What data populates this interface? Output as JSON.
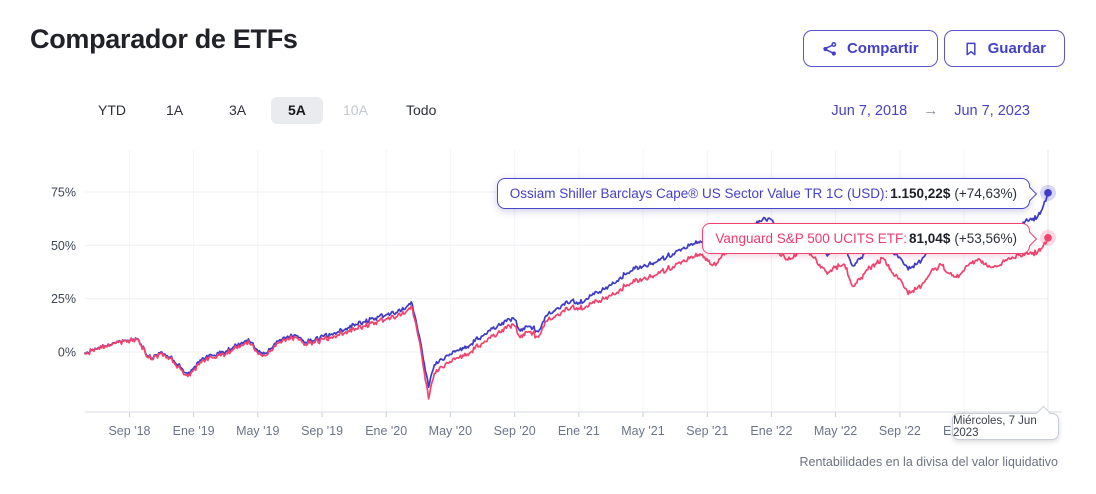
{
  "page": {
    "title": "Comparador de ETFs",
    "footnote": "Rentabilidades en la divisa del valor liquidativo"
  },
  "header_actions": {
    "share_label": "Compartir",
    "save_label": "Guardar"
  },
  "range_tabs": {
    "items": [
      {
        "label": "YTD",
        "state": "normal"
      },
      {
        "label": "1A",
        "state": "normal"
      },
      {
        "label": "3A",
        "state": "normal"
      },
      {
        "label": "5A",
        "state": "selected"
      },
      {
        "label": "10A",
        "state": "disabled"
      },
      {
        "label": "Todo",
        "state": "normal"
      }
    ]
  },
  "date_range": {
    "start": "Jun 7, 2018",
    "arrow": "→",
    "end": "Jun 7, 2023"
  },
  "chart_data": {
    "type": "line",
    "grid": true,
    "x_axis": {
      "unit": "decimal_year",
      "range": [
        2018.436,
        2023.436
      ],
      "ticks": [
        {
          "x": 2018.667,
          "label": "Sep '18"
        },
        {
          "x": 2019.0,
          "label": "Ene '19"
        },
        {
          "x": 2019.333,
          "label": "May '19"
        },
        {
          "x": 2019.667,
          "label": "Sep '19"
        },
        {
          "x": 2020.0,
          "label": "Ene '20"
        },
        {
          "x": 2020.333,
          "label": "May '20"
        },
        {
          "x": 2020.667,
          "label": "Sep '20"
        },
        {
          "x": 2021.0,
          "label": "Ene '21"
        },
        {
          "x": 2021.333,
          "label": "May '21"
        },
        {
          "x": 2021.667,
          "label": "Sep '21"
        },
        {
          "x": 2022.0,
          "label": "Ene '22"
        },
        {
          "x": 2022.333,
          "label": "May '22"
        },
        {
          "x": 2022.667,
          "label": "Sep '22"
        },
        {
          "x": 2023.0,
          "label": "Ene '23"
        }
      ]
    },
    "y_axis": {
      "unit": "percent",
      "ticks": [
        0,
        25,
        50,
        75
      ],
      "tick_labels": [
        "0%",
        "25%",
        "50%",
        "75%"
      ],
      "visible_range": [
        -28,
        95
      ]
    },
    "series": [
      {
        "name": "Ossiam Shiller Barclays Cape® US Sector Value TR 1C (USD)",
        "color": "#3E3BC6",
        "last_value_label": "1.150,22$",
        "change_label": "(+74,63%)",
        "points": [
          [
            2018.436,
            -0.5
          ],
          [
            2018.47,
            0.8
          ],
          [
            2018.5,
            1.5
          ],
          [
            2018.54,
            3.0
          ],
          [
            2018.58,
            4.2
          ],
          [
            2018.62,
            5.0
          ],
          [
            2018.67,
            5.6
          ],
          [
            2018.71,
            6.2
          ],
          [
            2018.75,
            -0.5
          ],
          [
            2018.79,
            -3.0
          ],
          [
            2018.83,
            0.0
          ],
          [
            2018.88,
            -2.5
          ],
          [
            2018.92,
            -6.0
          ],
          [
            2018.97,
            -10.5
          ],
          [
            2019.0,
            -7.5
          ],
          [
            2019.04,
            -4.0
          ],
          [
            2019.08,
            -1.5
          ],
          [
            2019.13,
            -0.5
          ],
          [
            2019.17,
            0.5
          ],
          [
            2019.21,
            2.5
          ],
          [
            2019.25,
            4.5
          ],
          [
            2019.29,
            5.0
          ],
          [
            2019.33,
            1.0
          ],
          [
            2019.38,
            -0.5
          ],
          [
            2019.42,
            4.0
          ],
          [
            2019.46,
            6.0
          ],
          [
            2019.5,
            7.0
          ],
          [
            2019.54,
            7.5
          ],
          [
            2019.58,
            4.5
          ],
          [
            2019.63,
            5.5
          ],
          [
            2019.67,
            7.5
          ],
          [
            2019.71,
            8.0
          ],
          [
            2019.75,
            9.5
          ],
          [
            2019.79,
            11.0
          ],
          [
            2019.83,
            13.0
          ],
          [
            2019.88,
            14.0
          ],
          [
            2019.92,
            15.5
          ],
          [
            2019.96,
            16.5
          ],
          [
            2020.0,
            17.5
          ],
          [
            2020.04,
            18.0
          ],
          [
            2020.08,
            19.5
          ],
          [
            2020.13,
            23.5
          ],
          [
            2020.17,
            8.0
          ],
          [
            2020.22,
            -16.5
          ],
          [
            2020.25,
            -6.0
          ],
          [
            2020.29,
            -3.5
          ],
          [
            2020.33,
            -1.0
          ],
          [
            2020.38,
            1.0
          ],
          [
            2020.42,
            2.5
          ],
          [
            2020.46,
            5.0
          ],
          [
            2020.5,
            7.5
          ],
          [
            2020.54,
            10.0
          ],
          [
            2020.58,
            12.5
          ],
          [
            2020.63,
            15.5
          ],
          [
            2020.67,
            15.0
          ],
          [
            2020.69,
            10.5
          ],
          [
            2020.75,
            12.0
          ],
          [
            2020.79,
            9.5
          ],
          [
            2020.83,
            17.0
          ],
          [
            2020.88,
            20.0
          ],
          [
            2020.92,
            22.5
          ],
          [
            2020.96,
            24.0
          ],
          [
            2021.0,
            23.0
          ],
          [
            2021.04,
            25.0
          ],
          [
            2021.08,
            27.0
          ],
          [
            2021.13,
            29.5
          ],
          [
            2021.17,
            31.5
          ],
          [
            2021.21,
            34.5
          ],
          [
            2021.25,
            37.0
          ],
          [
            2021.29,
            39.0
          ],
          [
            2021.33,
            40.0
          ],
          [
            2021.38,
            41.5
          ],
          [
            2021.42,
            43.0
          ],
          [
            2021.46,
            45.0
          ],
          [
            2021.5,
            46.5
          ],
          [
            2021.54,
            48.5
          ],
          [
            2021.58,
            50.5
          ],
          [
            2021.63,
            52.0
          ],
          [
            2021.67,
            48.5
          ],
          [
            2021.71,
            46.5
          ],
          [
            2021.75,
            52.0
          ],
          [
            2021.79,
            55.0
          ],
          [
            2021.83,
            57.0
          ],
          [
            2021.88,
            54.0
          ],
          [
            2021.92,
            60.0
          ],
          [
            2021.96,
            63.0
          ],
          [
            2022.0,
            62.0
          ],
          [
            2022.04,
            54.0
          ],
          [
            2022.08,
            51.0
          ],
          [
            2022.13,
            53.5
          ],
          [
            2022.17,
            58.5
          ],
          [
            2022.21,
            53.0
          ],
          [
            2022.25,
            49.0
          ],
          [
            2022.29,
            45.0
          ],
          [
            2022.33,
            48.0
          ],
          [
            2022.38,
            50.0
          ],
          [
            2022.42,
            40.5
          ],
          [
            2022.46,
            43.5
          ],
          [
            2022.5,
            48.0
          ],
          [
            2022.54,
            51.0
          ],
          [
            2022.58,
            54.0
          ],
          [
            2022.63,
            47.0
          ],
          [
            2022.67,
            44.0
          ],
          [
            2022.71,
            38.5
          ],
          [
            2022.75,
            41.0
          ],
          [
            2022.79,
            44.5
          ],
          [
            2022.83,
            50.0
          ],
          [
            2022.88,
            53.0
          ],
          [
            2022.92,
            49.0
          ],
          [
            2022.96,
            47.0
          ],
          [
            2023.0,
            50.0
          ],
          [
            2023.04,
            54.0
          ],
          [
            2023.08,
            57.0
          ],
          [
            2023.13,
            53.5
          ],
          [
            2023.17,
            52.0
          ],
          [
            2023.21,
            55.0
          ],
          [
            2023.25,
            58.0
          ],
          [
            2023.29,
            60.0
          ],
          [
            2023.33,
            61.5
          ],
          [
            2023.38,
            63.0
          ],
          [
            2023.4,
            66.0
          ],
          [
            2023.436,
            74.63
          ]
        ]
      },
      {
        "name": "Vanguard S&P 500 UCITS ETF",
        "color": "#F2426E",
        "last_value_label": "81,04$",
        "change_label": "(+53,56%)",
        "points": [
          [
            2018.436,
            -0.8
          ],
          [
            2018.47,
            0.6
          ],
          [
            2018.5,
            1.3
          ],
          [
            2018.54,
            2.8
          ],
          [
            2018.58,
            4.0
          ],
          [
            2018.62,
            4.8
          ],
          [
            2018.67,
            5.4
          ],
          [
            2018.71,
            6.0
          ],
          [
            2018.75,
            -1.0
          ],
          [
            2018.79,
            -3.5
          ],
          [
            2018.83,
            -0.5
          ],
          [
            2018.88,
            -3.0
          ],
          [
            2018.92,
            -7.0
          ],
          [
            2018.97,
            -11.5
          ],
          [
            2019.0,
            -8.5
          ],
          [
            2019.04,
            -5.0
          ],
          [
            2019.08,
            -2.5
          ],
          [
            2019.13,
            -1.5
          ],
          [
            2019.17,
            -0.5
          ],
          [
            2019.21,
            1.5
          ],
          [
            2019.25,
            3.5
          ],
          [
            2019.29,
            4.0
          ],
          [
            2019.33,
            0.0
          ],
          [
            2019.38,
            -1.5
          ],
          [
            2019.42,
            3.0
          ],
          [
            2019.46,
            5.0
          ],
          [
            2019.5,
            6.0
          ],
          [
            2019.54,
            6.5
          ],
          [
            2019.58,
            3.5
          ],
          [
            2019.63,
            4.5
          ],
          [
            2019.67,
            6.0
          ],
          [
            2019.71,
            6.5
          ],
          [
            2019.75,
            8.0
          ],
          [
            2019.79,
            9.5
          ],
          [
            2019.83,
            11.0
          ],
          [
            2019.88,
            12.0
          ],
          [
            2019.92,
            13.5
          ],
          [
            2019.96,
            14.5
          ],
          [
            2020.0,
            15.5
          ],
          [
            2020.04,
            16.0
          ],
          [
            2020.08,
            17.5
          ],
          [
            2020.13,
            21.5
          ],
          [
            2020.17,
            6.0
          ],
          [
            2020.22,
            -22.0
          ],
          [
            2020.25,
            -10.0
          ],
          [
            2020.29,
            -7.0
          ],
          [
            2020.33,
            -4.5
          ],
          [
            2020.38,
            -2.5
          ],
          [
            2020.42,
            -1.0
          ],
          [
            2020.46,
            1.5
          ],
          [
            2020.5,
            4.0
          ],
          [
            2020.54,
            6.5
          ],
          [
            2020.58,
            9.0
          ],
          [
            2020.63,
            12.5
          ],
          [
            2020.67,
            12.0
          ],
          [
            2020.69,
            7.5
          ],
          [
            2020.75,
            9.5
          ],
          [
            2020.79,
            7.0
          ],
          [
            2020.83,
            14.5
          ],
          [
            2020.88,
            17.0
          ],
          [
            2020.92,
            19.5
          ],
          [
            2020.96,
            21.0
          ],
          [
            2021.0,
            20.5
          ],
          [
            2021.04,
            21.5
          ],
          [
            2021.08,
            23.0
          ],
          [
            2021.13,
            25.0
          ],
          [
            2021.17,
            26.5
          ],
          [
            2021.21,
            29.0
          ],
          [
            2021.25,
            31.5
          ],
          [
            2021.29,
            33.0
          ],
          [
            2021.33,
            34.0
          ],
          [
            2021.38,
            35.5
          ],
          [
            2021.42,
            37.0
          ],
          [
            2021.46,
            39.0
          ],
          [
            2021.5,
            40.5
          ],
          [
            2021.54,
            42.5
          ],
          [
            2021.58,
            44.5
          ],
          [
            2021.63,
            46.0
          ],
          [
            2021.67,
            42.5
          ],
          [
            2021.71,
            40.5
          ],
          [
            2021.75,
            46.0
          ],
          [
            2021.79,
            48.5
          ],
          [
            2021.83,
            50.0
          ],
          [
            2021.88,
            46.5
          ],
          [
            2021.92,
            52.5
          ],
          [
            2021.96,
            55.5
          ],
          [
            2022.0,
            54.5
          ],
          [
            2022.04,
            46.5
          ],
          [
            2022.08,
            43.5
          ],
          [
            2022.13,
            45.5
          ],
          [
            2022.17,
            50.5
          ],
          [
            2022.21,
            45.0
          ],
          [
            2022.25,
            41.0
          ],
          [
            2022.29,
            36.5
          ],
          [
            2022.33,
            39.5
          ],
          [
            2022.38,
            41.0
          ],
          [
            2022.42,
            31.0
          ],
          [
            2022.46,
            34.0
          ],
          [
            2022.5,
            38.5
          ],
          [
            2022.54,
            41.5
          ],
          [
            2022.58,
            44.0
          ],
          [
            2022.63,
            37.0
          ],
          [
            2022.67,
            34.0
          ],
          [
            2022.71,
            27.0
          ],
          [
            2022.75,
            29.5
          ],
          [
            2022.79,
            32.5
          ],
          [
            2022.83,
            38.0
          ],
          [
            2022.88,
            41.0
          ],
          [
            2022.92,
            37.0
          ],
          [
            2022.96,
            35.0
          ],
          [
            2023.0,
            38.0
          ],
          [
            2023.04,
            41.5
          ],
          [
            2023.08,
            43.5
          ],
          [
            2023.13,
            40.5
          ],
          [
            2023.17,
            40.0
          ],
          [
            2023.21,
            42.5
          ],
          [
            2023.25,
            44.5
          ],
          [
            2023.29,
            45.5
          ],
          [
            2023.33,
            46.0
          ],
          [
            2023.38,
            46.5
          ],
          [
            2023.4,
            48.5
          ],
          [
            2023.436,
            53.56
          ]
        ]
      }
    ],
    "annotations": {
      "hover_date": "Miércoles, 7 Jun 2023"
    }
  }
}
